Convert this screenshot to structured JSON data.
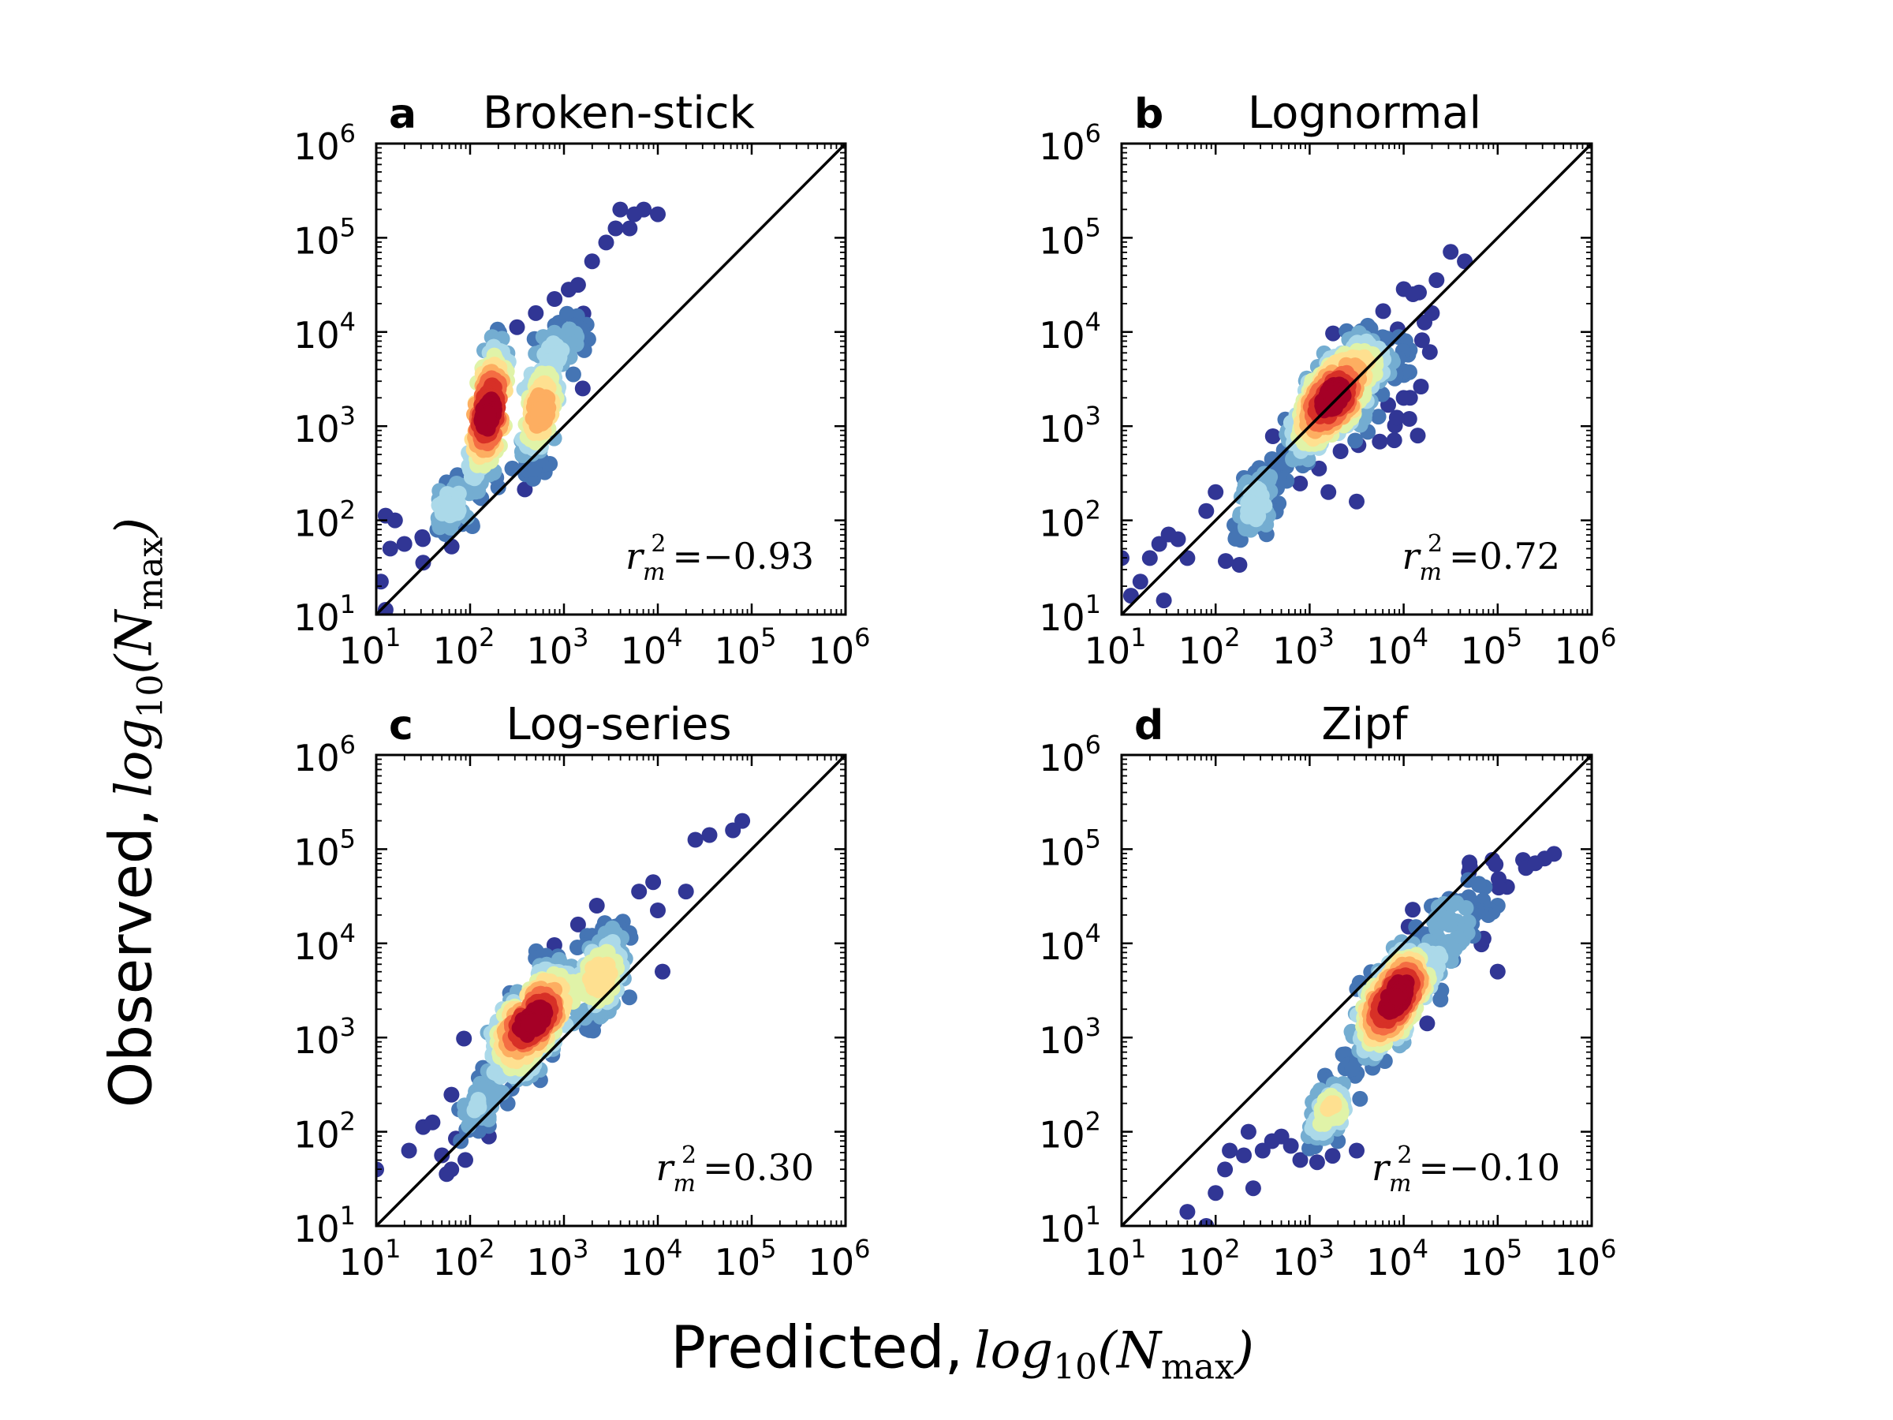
{
  "figure": {
    "xlabel": "Predicted,",
    "xlabel_math": "log10(Nmax)",
    "ylabel": "Observed,",
    "ylabel_math": "log10(Nmax)"
  },
  "colormap": [
    "#313695",
    "#4575b4",
    "#74add1",
    "#abd9e9",
    "#e0f3a8",
    "#fee090",
    "#fdae61",
    "#f46d43",
    "#d73027",
    "#a50026"
  ],
  "chart_data": [
    {
      "type": "scatter",
      "panel_letter": "a",
      "title": "Broken-stick",
      "annotation": "r_m^2 = −0.93",
      "r2_value": "=−0.93",
      "xscale": "log",
      "yscale": "log",
      "xlim": [
        10,
        1000000
      ],
      "ylim": [
        10,
        1000000
      ],
      "xticks": [
        "10^1",
        "10^2",
        "10^3",
        "10^4",
        "10^5",
        "10^6"
      ],
      "yticks": [
        "10^1",
        "10^2",
        "10^3",
        "10^4",
        "10^5",
        "10^6"
      ],
      "reference_line": "1:1",
      "clusters": [
        {
          "cx": 2.2,
          "cy": 3.15,
          "sx": 0.09,
          "sy": 0.35,
          "rho": 0.6,
          "n": 380
        },
        {
          "cx": 2.75,
          "cy": 3.2,
          "sx": 0.09,
          "sy": 0.3,
          "rho": 0.5,
          "n": 200
        },
        {
          "cx": 1.8,
          "cy": 2.15,
          "sx": 0.12,
          "sy": 0.18,
          "rho": 0.6,
          "n": 60
        },
        {
          "cx": 3.0,
          "cy": 3.95,
          "sx": 0.15,
          "sy": 0.15,
          "rho": 0.3,
          "n": 40
        }
      ],
      "outliers": [
        [
          3.6,
          5.3
        ],
        [
          3.75,
          5.25
        ],
        [
          3.85,
          5.3
        ],
        [
          4.0,
          5.25
        ],
        [
          3.7,
          5.1
        ],
        [
          3.55,
          5.1
        ],
        [
          3.45,
          4.95
        ],
        [
          3.3,
          4.75
        ],
        [
          3.15,
          4.5
        ],
        [
          3.05,
          4.45
        ],
        [
          2.9,
          4.35
        ],
        [
          2.7,
          4.2
        ],
        [
          2.5,
          4.05
        ],
        [
          1.1,
          1.05
        ],
        [
          1.05,
          1.35
        ],
        [
          1.15,
          1.7
        ],
        [
          1.2,
          2.0
        ],
        [
          1.1,
          2.05
        ],
        [
          1.5,
          1.55
        ],
        [
          1.65,
          1.9
        ],
        [
          2.3,
          2.35
        ],
        [
          2.45,
          2.55
        ],
        [
          2.6,
          2.8
        ],
        [
          3.2,
          3.4
        ],
        [
          3.1,
          3.55
        ],
        [
          2.85,
          2.6
        ],
        [
          1.3,
          1.75
        ]
      ]
    },
    {
      "type": "scatter",
      "panel_letter": "b",
      "title": "Lognormal",
      "annotation": "r_m^2 = 0.72",
      "r2_value": "=0.72",
      "xscale": "log",
      "yscale": "log",
      "xlim": [
        10,
        1000000
      ],
      "ylim": [
        10,
        1000000
      ],
      "xticks": [
        "10^1",
        "10^2",
        "10^3",
        "10^4",
        "10^5",
        "10^6"
      ],
      "yticks": [
        "10^1",
        "10^2",
        "10^3",
        "10^4",
        "10^5",
        "10^6"
      ],
      "reference_line": "1:1",
      "clusters": [
        {
          "cx": 3.25,
          "cy": 3.3,
          "sx": 0.22,
          "sy": 0.3,
          "rho": 0.7,
          "n": 500
        },
        {
          "cx": 2.45,
          "cy": 2.2,
          "sx": 0.12,
          "sy": 0.2,
          "rho": 0.5,
          "n": 80
        },
        {
          "cx": 3.7,
          "cy": 3.5,
          "sx": 0.25,
          "sy": 0.3,
          "rho": 0.5,
          "n": 80
        }
      ],
      "outliers": [
        [
          4.5,
          4.85
        ],
        [
          4.65,
          4.75
        ],
        [
          4.35,
          4.55
        ],
        [
          4.1,
          4.4
        ],
        [
          4.3,
          4.2
        ],
        [
          4.0,
          3.3
        ],
        [
          4.15,
          2.9
        ],
        [
          3.9,
          2.85
        ],
        [
          3.2,
          2.3
        ],
        [
          3.5,
          2.2
        ],
        [
          3.1,
          2.55
        ],
        [
          1.1,
          1.2
        ],
        [
          1.2,
          1.35
        ],
        [
          1.3,
          1.6
        ],
        [
          1.4,
          1.75
        ],
        [
          1.5,
          1.85
        ],
        [
          1.6,
          1.8
        ],
        [
          1.7,
          1.6
        ],
        [
          1.9,
          2.1
        ],
        [
          2.0,
          2.3
        ],
        [
          2.2,
          1.95
        ],
        [
          2.3,
          2.45
        ],
        [
          1.45,
          1.15
        ],
        [
          2.6,
          2.65
        ],
        [
          1.0,
          1.6
        ]
      ]
    },
    {
      "type": "scatter",
      "panel_letter": "c",
      "title": "Log-series",
      "annotation": "r_m^2 = 0.30",
      "r2_value": "=0.30",
      "xscale": "log",
      "yscale": "log",
      "xlim": [
        10,
        1000000
      ],
      "ylim": [
        10,
        1000000
      ],
      "xticks": [
        "10^1",
        "10^2",
        "10^3",
        "10^4",
        "10^5",
        "10^6"
      ],
      "yticks": [
        "10^1",
        "10^2",
        "10^3",
        "10^4",
        "10^5",
        "10^6"
      ],
      "reference_line": "1:1",
      "clusters": [
        {
          "cx": 2.65,
          "cy": 3.15,
          "sx": 0.22,
          "sy": 0.3,
          "rho": 0.6,
          "n": 450
        },
        {
          "cx": 3.4,
          "cy": 3.7,
          "sx": 0.15,
          "sy": 0.25,
          "rho": 0.4,
          "n": 150
        },
        {
          "cx": 2.1,
          "cy": 2.3,
          "sx": 0.12,
          "sy": 0.2,
          "rho": 0.5,
          "n": 50
        }
      ],
      "outliers": [
        [
          4.9,
          5.3
        ],
        [
          4.8,
          5.2
        ],
        [
          4.55,
          5.15
        ],
        [
          4.4,
          5.1
        ],
        [
          4.3,
          4.55
        ],
        [
          3.95,
          4.65
        ],
        [
          3.8,
          4.55
        ],
        [
          4.0,
          4.35
        ],
        [
          3.35,
          4.4
        ],
        [
          3.15,
          4.2
        ],
        [
          4.05,
          3.7
        ],
        [
          3.1,
          3.15
        ],
        [
          2.9,
          2.95
        ],
        [
          1.0,
          1.6
        ],
        [
          1.35,
          1.8
        ],
        [
          1.5,
          2.05
        ],
        [
          1.6,
          2.1
        ],
        [
          1.7,
          1.75
        ],
        [
          1.8,
          1.6
        ],
        [
          1.9,
          1.9
        ],
        [
          2.2,
          1.95
        ],
        [
          2.4,
          2.3
        ],
        [
          1.75,
          1.55
        ],
        [
          1.95,
          1.7
        ],
        [
          2.9,
          3.35
        ]
      ]
    },
    {
      "type": "scatter",
      "panel_letter": "d",
      "title": "Zipf",
      "annotation": "r_m^2 = −0.10",
      "r2_value": "=−0.10",
      "xscale": "log",
      "yscale": "log",
      "xlim": [
        10,
        1000000
      ],
      "ylim": [
        10,
        1000000
      ],
      "xticks": [
        "10^1",
        "10^2",
        "10^3",
        "10^4",
        "10^5",
        "10^6"
      ],
      "yticks": [
        "10^1",
        "10^2",
        "10^3",
        "10^4",
        "10^5",
        "10^6"
      ],
      "reference_line": "1:1",
      "clusters": [
        {
          "cx": 3.9,
          "cy": 3.4,
          "sx": 0.2,
          "sy": 0.3,
          "rho": 0.7,
          "n": 450
        },
        {
          "cx": 3.2,
          "cy": 2.2,
          "sx": 0.1,
          "sy": 0.18,
          "rho": 0.5,
          "n": 100
        },
        {
          "cx": 4.5,
          "cy": 4.2,
          "sx": 0.25,
          "sy": 0.3,
          "rho": 0.6,
          "n": 90
        }
      ],
      "outliers": [
        [
          5.6,
          4.95
        ],
        [
          5.5,
          4.9
        ],
        [
          5.4,
          4.85
        ],
        [
          5.3,
          4.8
        ],
        [
          5.1,
          4.6
        ],
        [
          5.0,
          4.4
        ],
        [
          4.9,
          4.3
        ],
        [
          4.75,
          4.3
        ],
        [
          4.85,
          4.05
        ],
        [
          5.0,
          3.7
        ],
        [
          4.4,
          3.5
        ],
        [
          4.25,
          3.15
        ],
        [
          4.0,
          2.95
        ],
        [
          3.8,
          2.75
        ],
        [
          1.7,
          1.15
        ],
        [
          1.9,
          1.0
        ],
        [
          2.0,
          1.35
        ],
        [
          2.1,
          1.6
        ],
        [
          2.15,
          1.8
        ],
        [
          2.3,
          1.75
        ],
        [
          2.4,
          1.4
        ],
        [
          2.5,
          1.8
        ],
        [
          2.6,
          1.9
        ],
        [
          2.7,
          1.95
        ],
        [
          2.8,
          1.85
        ],
        [
          2.9,
          1.7
        ],
        [
          3.3,
          1.9
        ],
        [
          3.5,
          1.8
        ],
        [
          2.35,
          2.0
        ]
      ]
    }
  ]
}
